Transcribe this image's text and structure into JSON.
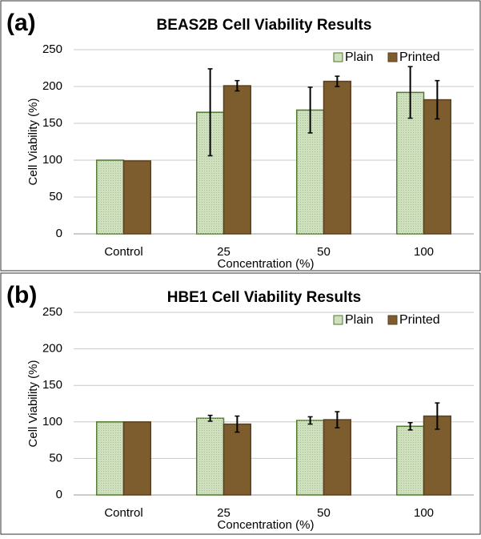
{
  "chart_data": [
    {
      "type": "bar",
      "panel": "(a)",
      "title": "BEAS2B Cell Viability Results",
      "x_label": "Concentration (%)",
      "y_label": "Cell Viability (%)",
      "categories": [
        "Control",
        "25",
        "50",
        "100"
      ],
      "series": [
        {
          "name": "Plain",
          "color": "#cfe0bf",
          "values": [
            100,
            165,
            168,
            192
          ],
          "errors": [
            0,
            59,
            31,
            35
          ]
        },
        {
          "name": "Printed",
          "color": "#7d5c2e",
          "values": [
            99,
            201,
            207,
            182
          ],
          "errors": [
            0,
            7,
            7,
            26
          ]
        }
      ],
      "ylim": [
        0,
        250
      ],
      "yticks": [
        0,
        50,
        100,
        150,
        200,
        250
      ],
      "grid": true,
      "legend": "top-right"
    },
    {
      "type": "bar",
      "panel": "(b)",
      "title": "HBE1 Cell Viability Results",
      "x_label": "Concentration (%)",
      "y_label": "Cell Viability (%)",
      "categories": [
        "Control",
        "25",
        "50",
        "100"
      ],
      "series": [
        {
          "name": "Plain",
          "color": "#cfe0bf",
          "values": [
            100,
            105,
            102,
            94
          ],
          "errors": [
            0,
            4,
            5,
            5
          ]
        },
        {
          "name": "Printed",
          "color": "#7d5c2e",
          "values": [
            100,
            97,
            103,
            108
          ],
          "errors": [
            0,
            11,
            11,
            18
          ]
        }
      ],
      "ylim": [
        0,
        250
      ],
      "yticks": [
        0,
        50,
        100,
        150,
        200,
        250
      ],
      "grid": true,
      "legend": "top-right"
    }
  ]
}
